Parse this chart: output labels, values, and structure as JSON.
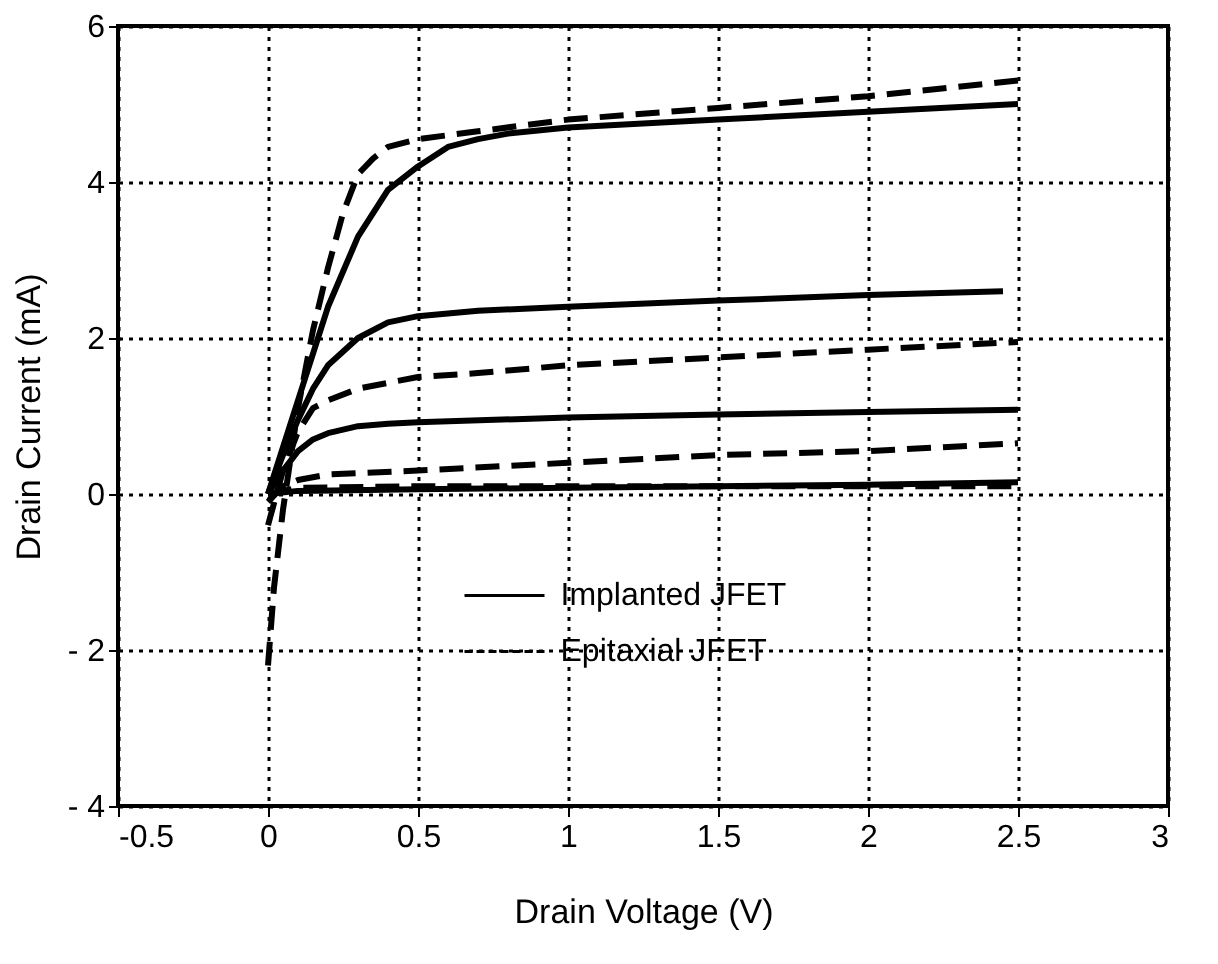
{
  "chart_data": {
    "type": "line",
    "xlabel": "Drain Voltage (V)",
    "ylabel": "Drain Current (mA)",
    "xlim": [
      -0.5,
      3
    ],
    "xticks": [
      -0.5,
      0,
      0.5,
      1,
      1.5,
      2,
      2.5,
      3
    ],
    "ylim": [
      -4,
      6
    ],
    "yticks": [
      {
        "value": -4,
        "label": "- 4"
      },
      {
        "value": -2,
        "label": "- 2"
      },
      0,
      2,
      4,
      6
    ],
    "grid": true,
    "legend": "bottom",
    "marker": "none",
    "series": [
      {
        "name": "Implanted JFET",
        "color": "#000000",
        "line_style": "solid",
        "x": [
          0,
          0.05,
          0.1,
          0.15,
          0.2,
          0.3,
          0.4,
          0.5,
          0.6,
          0.7,
          0.8,
          1,
          1.5,
          2,
          2.5
        ],
        "values": [
          0,
          0.6,
          1.2,
          1.8,
          2.4,
          3.3,
          3.9,
          4.2,
          4.45,
          4.55,
          4.62,
          4.7,
          4.8,
          4.9,
          5.0
        ]
      },
      {
        "color": "#000000",
        "line_style": "solid",
        "x": [
          0,
          0.05,
          0.1,
          0.15,
          0.2,
          0.3,
          0.4,
          0.5,
          0.7,
          1,
          1.5,
          2,
          2.45
        ],
        "values": [
          0,
          0.5,
          0.95,
          1.35,
          1.65,
          2.0,
          2.2,
          2.28,
          2.35,
          2.4,
          2.48,
          2.55,
          2.6
        ]
      },
      {
        "color": "#000000",
        "line_style": "solid",
        "x": [
          0,
          0.05,
          0.1,
          0.15,
          0.2,
          0.3,
          0.4,
          0.5,
          1,
          1.5,
          2,
          2.5
        ],
        "values": [
          0,
          0.3,
          0.55,
          0.7,
          0.78,
          0.87,
          0.9,
          0.92,
          0.98,
          1.02,
          1.05,
          1.08
        ]
      },
      {
        "color": "#000000",
        "line_style": "solid",
        "x": [
          0,
          0.1,
          0.5,
          1,
          1.5,
          2,
          2.5
        ],
        "values": [
          0,
          0.04,
          0.06,
          0.08,
          0.1,
          0.12,
          0.15
        ]
      },
      {
        "name": "Epitaxial JFET",
        "color": "#000000",
        "line_style": "dashed",
        "x": [
          0,
          0.02,
          0.05,
          0.1,
          0.15,
          0.2,
          0.25,
          0.3,
          0.35,
          0.4,
          0.5,
          0.7,
          1,
          1.5,
          2,
          2.5
        ],
        "values": [
          -2.2,
          -1.2,
          -0.2,
          1.1,
          2.1,
          2.9,
          3.6,
          4.1,
          4.3,
          4.45,
          4.55,
          4.65,
          4.8,
          4.95,
          5.1,
          5.3
        ]
      },
      {
        "color": "#000000",
        "line_style": "dashed",
        "x": [
          0,
          0.05,
          0.1,
          0.15,
          0.2,
          0.3,
          0.5,
          0.7,
          1,
          1.5,
          2,
          2.5
        ],
        "values": [
          -0.4,
          0.3,
          0.8,
          1.1,
          1.2,
          1.35,
          1.5,
          1.55,
          1.65,
          1.75,
          1.85,
          1.95
        ]
      },
      {
        "color": "#000000",
        "line_style": "dashed",
        "x": [
          0,
          0.05,
          0.1,
          0.2,
          0.5,
          1,
          1.5,
          2,
          2.5
        ],
        "values": [
          -0.1,
          0.1,
          0.18,
          0.25,
          0.3,
          0.4,
          0.5,
          0.55,
          0.65
        ]
      },
      {
        "color": "#000000",
        "line_style": "dashed",
        "x": [
          0,
          0.1,
          0.5,
          1,
          1.5,
          2,
          2.5
        ],
        "values": [
          0,
          0.08,
          0.1,
          0.1,
          0.1,
          0.1,
          0.1
        ]
      }
    ]
  }
}
